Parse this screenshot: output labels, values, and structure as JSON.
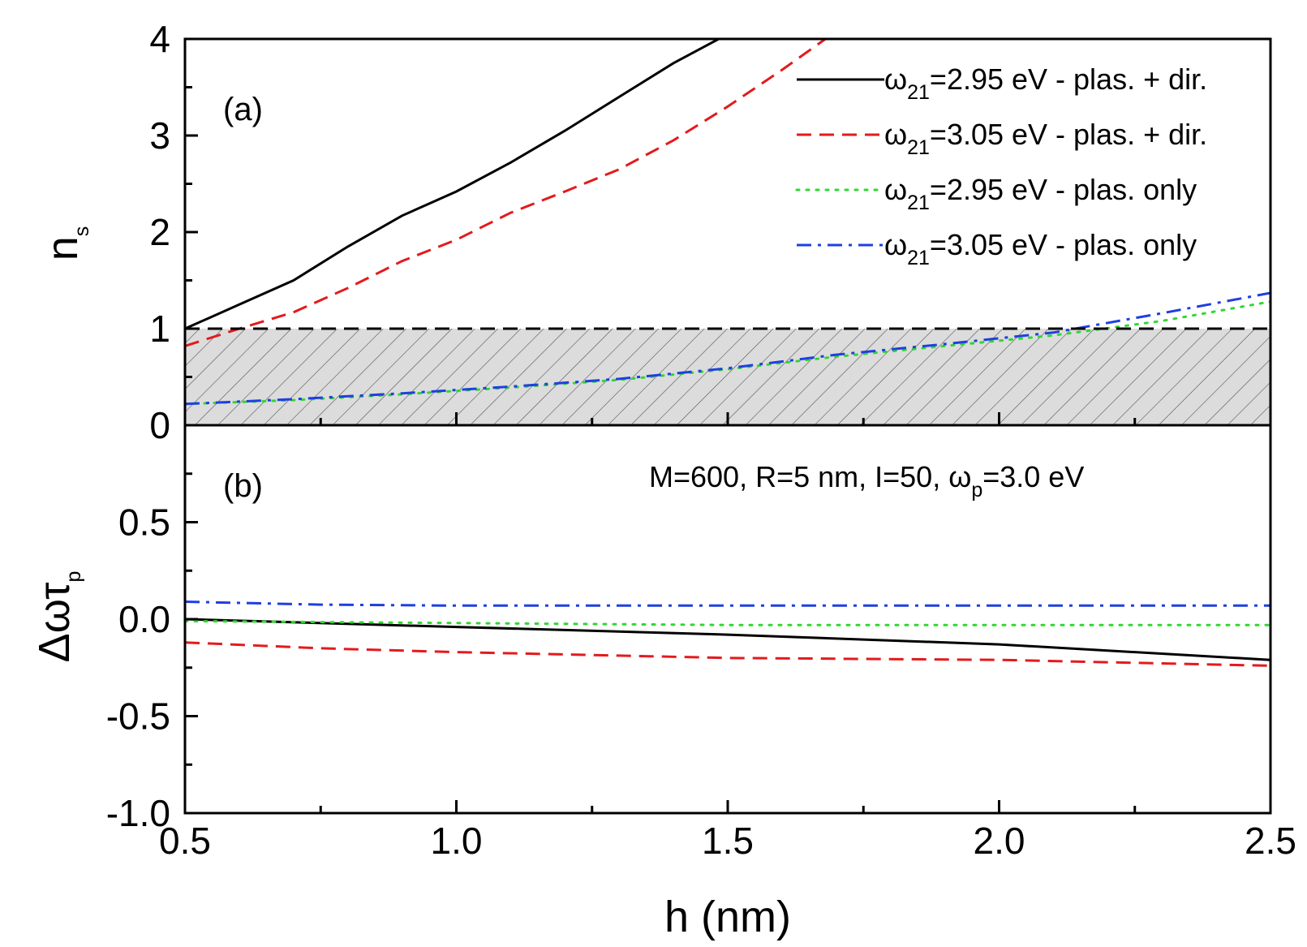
{
  "chart_data": [
    {
      "panel": "a",
      "type": "line",
      "panel_label": "(a)",
      "ylabel": "n",
      "ylabel_sub": "s",
      "xlim": [
        0.5,
        2.5
      ],
      "ylim": [
        0,
        4
      ],
      "yticks": [
        "0",
        "1",
        "2",
        "3",
        "4"
      ],
      "ytick_values": [
        0,
        1,
        2,
        3,
        4
      ],
      "legend_position": "top-right",
      "threshold": {
        "y": 1,
        "color": "#000000",
        "shaded_region": [
          0,
          1
        ]
      },
      "series": [
        {
          "name": "=2.95 eV - plas. + dir.",
          "symbol": "ω",
          "symbol_sub": "21",
          "color": "#000000",
          "style": "solid",
          "x": [
            0.5,
            0.6,
            0.7,
            0.8,
            0.9,
            1.0,
            1.1,
            1.2,
            1.3,
            1.4,
            1.5
          ],
          "y": [
            1.0,
            1.25,
            1.5,
            1.85,
            2.17,
            2.42,
            2.72,
            3.05,
            3.4,
            3.75,
            4.05
          ]
        },
        {
          "name": "=3.05 eV - plas. + dir.",
          "symbol": "ω",
          "symbol_sub": "21",
          "color": "#e31a1c",
          "style": "dashed",
          "x": [
            0.5,
            0.6,
            0.7,
            0.8,
            0.9,
            1.0,
            1.1,
            1.2,
            1.3,
            1.4,
            1.5,
            1.6,
            1.7
          ],
          "y": [
            0.82,
            1.0,
            1.17,
            1.42,
            1.7,
            1.92,
            2.2,
            2.42,
            2.65,
            2.95,
            3.3,
            3.68,
            4.08
          ]
        },
        {
          "name": "=2.95 eV - plas. only",
          "symbol": "ω",
          "symbol_sub": "21",
          "color": "#33d633",
          "style": "dotted",
          "x": [
            0.5,
            0.7,
            0.9,
            1.1,
            1.3,
            1.5,
            1.7,
            1.9,
            2.1,
            2.3,
            2.5
          ],
          "y": [
            0.22,
            0.26,
            0.32,
            0.39,
            0.47,
            0.58,
            0.71,
            0.82,
            0.93,
            1.08,
            1.28
          ]
        },
        {
          "name": "=3.05 eV - plas. only",
          "symbol": "ω",
          "symbol_sub": "21",
          "color": "#1f3fe0",
          "style": "dashdot",
          "x": [
            0.5,
            0.7,
            0.9,
            1.1,
            1.3,
            1.5,
            1.7,
            1.9,
            2.1,
            2.3,
            2.5
          ],
          "y": [
            0.22,
            0.27,
            0.33,
            0.4,
            0.48,
            0.59,
            0.73,
            0.84,
            0.96,
            1.16,
            1.37
          ]
        }
      ]
    },
    {
      "panel": "b",
      "type": "line",
      "panel_label": "(b)",
      "ylabel": "Δωτ",
      "ylabel_sub": "p",
      "xlabel": "h (nm)",
      "xlim": [
        0.5,
        2.5
      ],
      "ylim": [
        -1.0,
        1.0
      ],
      "xticks": [
        "0.5",
        "1.0",
        "1.5",
        "2.0",
        "2.5"
      ],
      "xtick_values": [
        0.5,
        1.0,
        1.5,
        2.0,
        2.5
      ],
      "yticks": [
        "-1.0",
        "-0.5",
        "0.0",
        "0.5"
      ],
      "ytick_values": [
        -1.0,
        -0.5,
        0.0,
        0.5
      ],
      "annotation": {
        "text_before": "M=600, R=5 nm, I=50, ω",
        "sub": "p",
        "text_after": "=3.0 eV"
      },
      "series": [
        {
          "color": "#000000",
          "style": "solid",
          "x": [
            0.5,
            1.0,
            1.5,
            2.0,
            2.5
          ],
          "y": [
            0.0,
            -0.04,
            -0.08,
            -0.13,
            -0.21
          ]
        },
        {
          "color": "#e31a1c",
          "style": "dashed",
          "x": [
            0.5,
            0.75,
            1.0,
            1.5,
            2.0,
            2.5
          ],
          "y": [
            -0.12,
            -0.15,
            -0.17,
            -0.2,
            -0.21,
            -0.24
          ]
        },
        {
          "color": "#33d633",
          "style": "dotted",
          "x": [
            0.5,
            1.0,
            1.5,
            2.0,
            2.5
          ],
          "y": [
            -0.01,
            -0.02,
            -0.03,
            -0.03,
            -0.03
          ]
        },
        {
          "color": "#1f3fe0",
          "style": "dashdot",
          "x": [
            0.5,
            0.75,
            1.0,
            1.5,
            2.0,
            2.5
          ],
          "y": [
            0.09,
            0.075,
            0.07,
            0.07,
            0.07,
            0.07
          ]
        }
      ]
    }
  ]
}
